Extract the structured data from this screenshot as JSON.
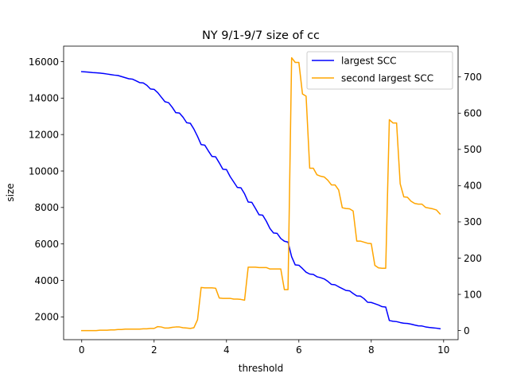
{
  "chart_data": {
    "type": "line",
    "title": "NY 9/1-9/7 size of cc",
    "xlabel": "threshold",
    "ylabel": "size",
    "y2label": "",
    "xlim": [
      -0.5,
      10.4
    ],
    "ylim": [
      750,
      16850
    ],
    "y2lim": [
      -25,
      785
    ],
    "x_ticks": [
      0,
      2,
      4,
      6,
      8,
      10
    ],
    "y_ticks": [
      2000,
      4000,
      6000,
      8000,
      10000,
      12000,
      14000,
      16000
    ],
    "y2_ticks": [
      0,
      100,
      200,
      300,
      400,
      500,
      600,
      700
    ],
    "grid": false,
    "legend": "top-right",
    "series": [
      {
        "name": "largest SCC",
        "axis": "left",
        "color": "#0000ff",
        "x": [
          0,
          0.1,
          0.2,
          0.3,
          0.4,
          0.5,
          0.6,
          0.7,
          0.8,
          0.9,
          1.0,
          1.1,
          1.2,
          1.3,
          1.4,
          1.5,
          1.6,
          1.7,
          1.8,
          1.9,
          2.0,
          2.1,
          2.2,
          2.3,
          2.4,
          2.5,
          2.6,
          2.7,
          2.8,
          2.9,
          3.0,
          3.1,
          3.2,
          3.3,
          3.4,
          3.5,
          3.6,
          3.7,
          3.8,
          3.9,
          4.0,
          4.1,
          4.2,
          4.3,
          4.4,
          4.5,
          4.6,
          4.7,
          4.8,
          4.9,
          5.0,
          5.1,
          5.2,
          5.3,
          5.4,
          5.5,
          5.6,
          5.7,
          5.8,
          5.9,
          6.0,
          6.1,
          6.2,
          6.3,
          6.4,
          6.5,
          6.6,
          6.7,
          6.8,
          6.9,
          7.0,
          7.1,
          7.2,
          7.3,
          7.4,
          7.5,
          7.6,
          7.7,
          7.8,
          7.9,
          8.0,
          8.1,
          8.2,
          8.3,
          8.4,
          8.5,
          8.6,
          8.7,
          8.8,
          8.9,
          9.0,
          9.1,
          9.2,
          9.3,
          9.4,
          9.5,
          9.6,
          9.7,
          9.8,
          9.9
        ],
        "values": [
          15450,
          15440,
          15420,
          15400,
          15390,
          15370,
          15350,
          15320,
          15290,
          15260,
          15240,
          15180,
          15120,
          15060,
          15040,
          14950,
          14850,
          14830,
          14700,
          14500,
          14480,
          14300,
          14050,
          13800,
          13750,
          13500,
          13200,
          13180,
          12950,
          12650,
          12620,
          12300,
          11900,
          11450,
          11420,
          11100,
          10800,
          10780,
          10450,
          10100,
          10080,
          9700,
          9400,
          9100,
          9080,
          8750,
          8300,
          8280,
          7950,
          7600,
          7580,
          7250,
          6850,
          6600,
          6580,
          6300,
          6150,
          6100,
          5300,
          4850,
          4830,
          4650,
          4450,
          4350,
          4330,
          4200,
          4150,
          4080,
          3950,
          3780,
          3760,
          3650,
          3550,
          3450,
          3430,
          3280,
          3150,
          3140,
          3000,
          2800,
          2790,
          2720,
          2650,
          2560,
          2540,
          1800,
          1760,
          1740,
          1690,
          1650,
          1640,
          1600,
          1550,
          1510,
          1500,
          1450,
          1420,
          1400,
          1380,
          1350
        ]
      },
      {
        "name": "second largest SCC",
        "axis": "right",
        "color": "#ffa500",
        "x": [
          0,
          0.1,
          0.2,
          0.3,
          0.4,
          0.5,
          0.6,
          0.7,
          0.8,
          0.9,
          1.0,
          1.1,
          1.2,
          1.3,
          1.4,
          1.5,
          1.6,
          1.7,
          1.8,
          1.9,
          2.0,
          2.1,
          2.2,
          2.3,
          2.4,
          2.5,
          2.6,
          2.7,
          2.8,
          2.9,
          3.0,
          3.1,
          3.2,
          3.3,
          3.4,
          3.5,
          3.6,
          3.7,
          3.8,
          3.9,
          4.0,
          4.1,
          4.2,
          4.3,
          4.4,
          4.5,
          4.6,
          4.7,
          4.8,
          4.9,
          5.0,
          5.1,
          5.2,
          5.3,
          5.4,
          5.5,
          5.6,
          5.7,
          5.8,
          5.9,
          6.0,
          6.1,
          6.2,
          6.3,
          6.4,
          6.5,
          6.6,
          6.7,
          6.8,
          6.9,
          7.0,
          7.1,
          7.2,
          7.3,
          7.4,
          7.5,
          7.6,
          7.7,
          7.8,
          7.9,
          8.0,
          8.1,
          8.2,
          8.3,
          8.4,
          8.5,
          8.6,
          8.7,
          8.8,
          8.9,
          9.0,
          9.1,
          9.2,
          9.3,
          9.4,
          9.5,
          9.6,
          9.7,
          9.8,
          9.9
        ],
        "values": [
          0,
          0,
          0,
          0,
          0,
          1,
          1,
          1,
          2,
          2,
          3,
          3,
          4,
          4,
          4,
          4,
          4,
          5,
          5,
          6,
          6,
          11,
          10,
          7,
          7,
          9,
          10,
          10,
          8,
          7,
          6,
          8,
          30,
          119,
          118,
          118,
          118,
          117,
          90,
          89,
          89,
          89,
          87,
          87,
          86,
          84,
          175,
          175,
          175,
          174,
          174,
          174,
          170,
          170,
          170,
          170,
          113,
          113,
          753,
          740,
          740,
          653,
          647,
          448,
          448,
          430,
          426,
          424,
          415,
          402,
          402,
          388,
          339,
          337,
          336,
          330,
          247,
          247,
          244,
          241,
          240,
          180,
          173,
          172,
          172,
          582,
          573,
          573,
          405,
          369,
          368,
          357,
          351,
          349,
          349,
          340,
          338,
          336,
          333,
          322
        ]
      }
    ]
  }
}
